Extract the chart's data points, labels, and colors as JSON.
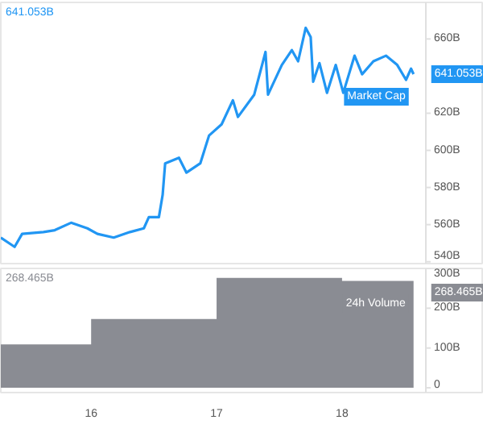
{
  "chart_data": [
    {
      "type": "line",
      "tick_labels": "y",
      "line_style": "solid",
      "xlim": [
        15.28,
        19.13
      ],
      "ylim": [
        539,
        679.7
      ],
      "yticks": [
        {
          "value": 540,
          "label": "540B"
        },
        {
          "value": 560,
          "label": "560B"
        },
        {
          "value": 580,
          "label": "580B"
        },
        {
          "value": 600,
          "label": "600B"
        },
        {
          "value": 620,
          "label": "620B"
        },
        {
          "value": 660,
          "label": "660B"
        }
      ],
      "annotations": [
        "641.053B",
        "Market Cap",
        {
          "text": "641.053B",
          "x": 18.57,
          "y": 641.053
        }
      ],
      "series": [
        {
          "color": "#2196f3",
          "x": [
            15.28,
            15.39,
            15.45,
            15.62,
            15.71,
            15.84,
            15.97,
            16.05,
            16.18,
            16.31,
            16.42,
            16.46,
            16.54,
            16.57,
            16.59,
            16.7,
            16.76,
            16.87,
            16.94,
            17.04,
            17.13,
            17.17,
            17.3,
            17.39,
            17.41,
            17.52,
            17.6,
            17.65,
            17.71,
            17.75,
            17.77,
            17.82,
            17.88,
            17.95,
            18.01,
            18.1,
            18.16,
            18.25,
            18.35,
            18.44,
            18.51,
            18.55,
            18.57
          ],
          "values": [
            553,
            548,
            555,
            556,
            557,
            561,
            558,
            555,
            553,
            556,
            558,
            564,
            564,
            576,
            593,
            596,
            588,
            593,
            608,
            614,
            627,
            618,
            630,
            653,
            630,
            646,
            654,
            648,
            666,
            661,
            637,
            647,
            631,
            646,
            631,
            651,
            641,
            648,
            651,
            646,
            638,
            644,
            641.053
          ]
        }
      ]
    },
    {
      "type": "area",
      "xlim": [
        15.28,
        19.13
      ],
      "xticks": [
        16,
        17,
        18
      ],
      "ylim": [
        -12,
        300
      ],
      "yticks": [
        0,
        {
          "value": 100,
          "label": "100B"
        },
        {
          "value": 200,
          "label": "200B"
        },
        {
          "value": 300,
          "label": "300B"
        }
      ],
      "annotations": [
        "268.465B",
        "24h Volume",
        {
          "text": "268.465B",
          "x": 18.57,
          "y": 268.465
        }
      ],
      "series": [
        {
          "color": "#8a8c93",
          "x": [
            15.28,
            16,
            17,
            18,
            18.57
          ],
          "values": [
            109,
            173,
            276,
            268.465,
            268.465
          ]
        }
      ]
    }
  ]
}
